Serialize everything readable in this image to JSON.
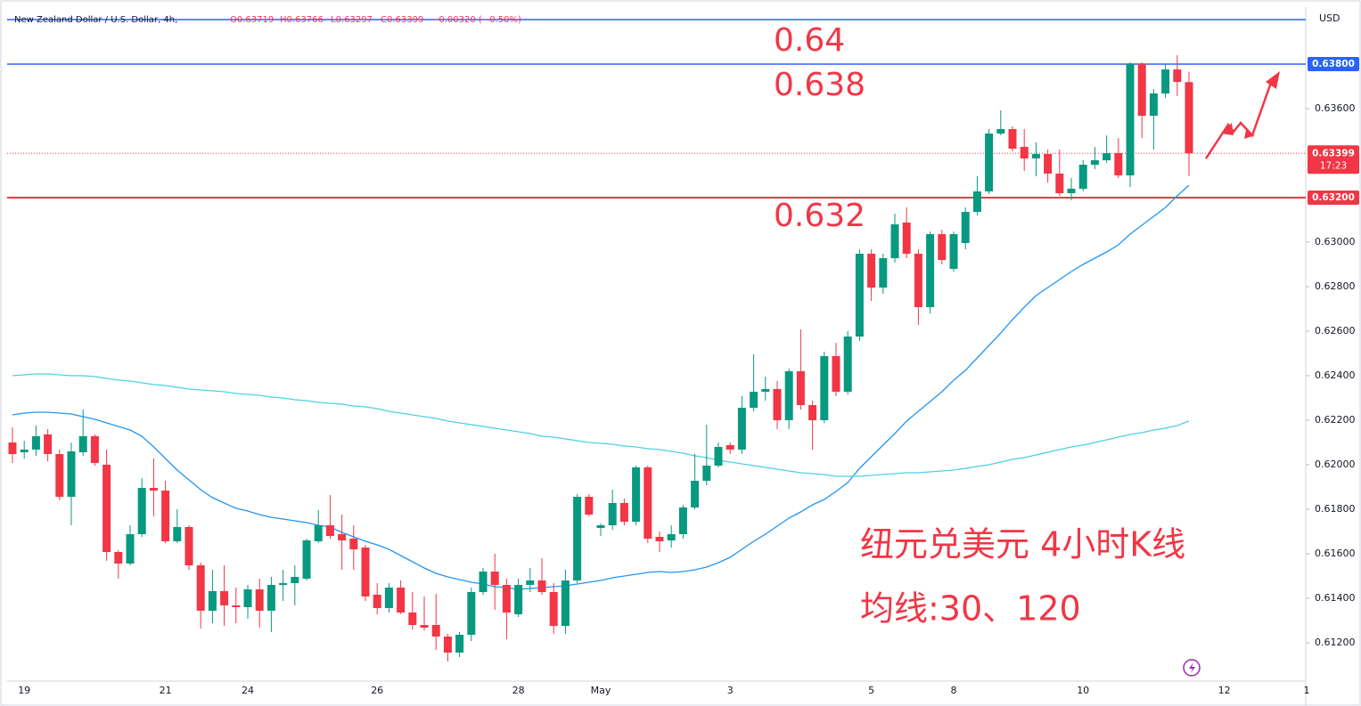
{
  "chart_data": {
    "type": "candlestick",
    "header": {
      "symbol": "New Zealand Dollar / U.S. Dollar, 4h,",
      "ohlc": [
        "O0.63719",
        "H0.63766",
        "L0.63297",
        "C0.63399"
      ],
      "change": "−0.00320 (−0.50%)"
    },
    "currency": "USD",
    "up_color": "#089981",
    "down_color": "#f23645",
    "categories": [
      null,
      "19",
      null,
      null,
      null,
      null,
      null,
      null,
      null,
      null,
      null,
      null,
      null,
      "21",
      null,
      null,
      null,
      null,
      null,
      null,
      "24",
      null,
      null,
      null,
      null,
      null,
      null,
      null,
      null,
      null,
      null,
      "26",
      null,
      null,
      null,
      null,
      null,
      null,
      null,
      null,
      null,
      null,
      null,
      "28",
      null,
      null,
      null,
      null,
      null,
      null,
      "May",
      null,
      null,
      null,
      null,
      null,
      null,
      null,
      null,
      null,
      null,
      "3",
      null,
      null,
      null,
      null,
      null,
      null,
      null,
      null,
      null,
      null,
      null,
      "5",
      null,
      null,
      null,
      null,
      null,
      null,
      "8",
      null,
      null,
      null,
      null,
      null,
      null,
      null,
      null,
      null,
      null,
      "10",
      null,
      null,
      null,
      null,
      null,
      null,
      null,
      null,
      null,
      null,
      null,
      "12",
      null,
      null,
      null,
      null,
      null,
      null,
      "1"
    ],
    "open": [
      0.621,
      0.62056,
      0.62068,
      0.62136,
      0.62048,
      0.61856,
      0.62056,
      0.62128,
      0.62,
      0.61608,
      0.61556,
      0.61688,
      0.61896,
      0.61884,
      0.61656,
      0.6172,
      0.61548,
      0.61344,
      0.61432,
      0.61368,
      0.6136,
      0.6144,
      0.61344,
      0.6146,
      0.61468,
      0.61488,
      0.61656,
      0.61728,
      0.61688,
      0.61668,
      0.61628,
      0.61416,
      0.61356,
      0.61448,
      0.61336,
      0.6128,
      0.6128,
      0.61228,
      0.61156,
      0.61236,
      0.61428,
      0.6152,
      0.6146,
      0.61328,
      0.6146,
      0.6148,
      0.61428,
      0.61276,
      0.6148,
      0.61856,
      0.61716,
      0.61728,
      0.61828,
      0.61744,
      0.61988,
      0.61676,
      0.6166,
      0.61688,
      0.61808,
      0.61928,
      0.61996,
      0.62088,
      0.62068,
      0.62256,
      0.62328,
      0.6234,
      0.622,
      0.6242,
      0.62268,
      0.622,
      0.62488,
      0.62328,
      0.62576,
      0.62948,
      0.62796,
      0.62928,
      0.63088,
      0.62948,
      0.62708,
      0.63036,
      0.6288,
      0.62996,
      0.63136,
      0.63228,
      0.63488,
      0.63508,
      0.63428,
      0.63376,
      0.63396,
      0.63308,
      0.6322,
      0.6324,
      0.63348,
      0.63368,
      0.634,
      0.633,
      0.638,
      0.63568,
      0.63668,
      0.63776,
      0.63719,
      null,
      null,
      null,
      null,
      null,
      null,
      null,
      null,
      null,
      null
    ],
    "high": [
      0.62168,
      0.62108,
      0.62176,
      0.6216,
      0.62068,
      0.621,
      0.62248,
      0.62136,
      0.62068,
      0.61616,
      0.61728,
      0.6194,
      0.62028,
      0.61928,
      0.618,
      0.61728,
      0.6156,
      0.61528,
      0.61548,
      0.61448,
      0.6146,
      0.61488,
      0.61496,
      0.61528,
      0.61548,
      0.61668,
      0.61796,
      0.61864,
      0.61776,
      0.61728,
      0.6164,
      0.61468,
      0.61468,
      0.6148,
      0.61428,
      0.61408,
      0.6142,
      0.6124,
      0.61248,
      0.61448,
      0.61536,
      0.616,
      0.61488,
      0.61488,
      0.61536,
      0.6158,
      0.61468,
      0.61528,
      0.61868,
      0.61868,
      0.61736,
      0.61888,
      0.61848,
      0.61996,
      0.61996,
      0.617,
      0.61728,
      0.6182,
      0.62048,
      0.6218,
      0.621,
      0.621,
      0.62308,
      0.62496,
      0.62396,
      0.62376,
      0.62432,
      0.62608,
      0.62288,
      0.62508,
      0.62548,
      0.626,
      0.62968,
      0.62968,
      0.62948,
      0.63128,
      0.63156,
      0.62968,
      0.63048,
      0.63056,
      0.63048,
      0.63156,
      0.63296,
      0.63508,
      0.63592,
      0.6352,
      0.63508,
      0.63448,
      0.63416,
      0.63416,
      0.63288,
      0.63368,
      0.63428,
      0.6348,
      0.63468,
      0.63808,
      0.63808,
      0.63688,
      0.638,
      0.6384,
      0.63766,
      null,
      null,
      null,
      null,
      null,
      null,
      null,
      null,
      null,
      null
    ],
    "low": [
      0.62008,
      0.62028,
      0.6204,
      0.62016,
      0.6184,
      0.61728,
      0.6204,
      0.61996,
      0.61568,
      0.61488,
      0.61548,
      0.61676,
      0.61768,
      0.61648,
      0.61648,
      0.61528,
      0.61264,
      0.61288,
      0.61276,
      0.61288,
      0.61308,
      0.61268,
      0.61248,
      0.61388,
      0.61368,
      0.6148,
      0.61648,
      0.61668,
      0.61528,
      0.61528,
      0.61388,
      0.61328,
      0.61336,
      0.61328,
      0.6126,
      0.61256,
      0.61168,
      0.61116,
      0.61136,
      0.61208,
      0.61416,
      0.61348,
      0.61216,
      0.61316,
      0.61428,
      0.61416,
      0.6124,
      0.6124,
      0.61468,
      0.61768,
      0.6168,
      0.61708,
      0.61728,
      0.61728,
      0.61648,
      0.61608,
      0.61628,
      0.61668,
      0.618,
      0.61908,
      0.61988,
      0.62048,
      0.62048,
      0.6224,
      0.62288,
      0.6216,
      0.6216,
      0.62248,
      0.62068,
      0.62188,
      0.62308,
      0.62316,
      0.62556,
      0.62736,
      0.62768,
      0.62908,
      0.62928,
      0.62628,
      0.6268,
      0.629,
      0.62868,
      0.62968,
      0.6312,
      0.63216,
      0.6348,
      0.63408,
      0.6332,
      0.63296,
      0.63268,
      0.63208,
      0.63188,
      0.63228,
      0.63328,
      0.63356,
      0.63288,
      0.63248,
      0.63468,
      0.63416,
      0.63648,
      0.63656,
      0.63297,
      null,
      null,
      null,
      null,
      null,
      null,
      null,
      null,
      null,
      null
    ],
    "close": [
      0.62048,
      0.62068,
      0.62128,
      0.62048,
      0.61856,
      0.6206,
      0.62128,
      0.62008,
      0.61608,
      0.61556,
      0.61688,
      0.61896,
      0.61884,
      0.61656,
      0.6172,
      0.61548,
      0.61344,
      0.61432,
      0.61368,
      0.6136,
      0.6144,
      0.61344,
      0.6146,
      0.61468,
      0.61496,
      0.6166,
      0.61728,
      0.6168,
      0.6166,
      0.6162,
      0.61408,
      0.61356,
      0.61448,
      0.61336,
      0.6128,
      0.61268,
      0.61228,
      0.61156,
      0.61236,
      0.61428,
      0.6152,
      0.6146,
      0.61336,
      0.6146,
      0.6148,
      0.61428,
      0.61276,
      0.6148,
      0.61856,
      0.61776,
      0.61728,
      0.61828,
      0.61744,
      0.61988,
      0.61668,
      0.61656,
      0.61688,
      0.61808,
      0.61928,
      0.61996,
      0.6208,
      0.62068,
      0.62256,
      0.62328,
      0.6234,
      0.622,
      0.6242,
      0.62268,
      0.622,
      0.62488,
      0.62328,
      0.62576,
      0.62948,
      0.62796,
      0.62928,
      0.6308,
      0.62948,
      0.62708,
      0.63036,
      0.6292,
      0.63036,
      0.63136,
      0.63228,
      0.63488,
      0.63508,
      0.6342,
      0.63376,
      0.63396,
      0.63308,
      0.6322,
      0.6324,
      0.63348,
      0.63368,
      0.634,
      0.633,
      0.638,
      0.63568,
      0.63668,
      0.63776,
      0.6372,
      0.63399,
      null,
      null,
      null,
      null,
      null,
      null,
      null,
      null,
      null,
      null
    ],
    "overlays": [
      {
        "color": "#2196f3",
        "values": [
          0.62224,
          0.62232,
          0.62236,
          0.62236,
          0.62232,
          0.62228,
          0.62216,
          0.62204,
          0.62188,
          0.62172,
          0.62156,
          0.62128,
          0.6208,
          0.62028,
          0.61976,
          0.61932,
          0.61888,
          0.61852,
          0.61828,
          0.61804,
          0.61792,
          0.61776,
          0.61764,
          0.61756,
          0.61748,
          0.6174,
          0.61728,
          0.6172,
          0.61696,
          0.61676,
          0.61656,
          0.6164,
          0.6162,
          0.61592,
          0.61564,
          0.61536,
          0.61512,
          0.61496,
          0.61484,
          0.61472,
          0.61464,
          0.61452,
          0.61448,
          0.6144,
          0.61444,
          0.61448,
          0.61452,
          0.61456,
          0.61464,
          0.61472,
          0.6148,
          0.61492,
          0.615,
          0.61508,
          0.61516,
          0.6152,
          0.61516,
          0.6152,
          0.61528,
          0.6154,
          0.6156,
          0.61584,
          0.6162,
          0.61656,
          0.61688,
          0.61724,
          0.6176,
          0.61788,
          0.6182,
          0.61844,
          0.6188,
          0.6192,
          0.61984,
          0.62036,
          0.62088,
          0.6214,
          0.62196,
          0.6224,
          0.62284,
          0.62328,
          0.6238,
          0.62424,
          0.6248,
          0.62536,
          0.62592,
          0.62652,
          0.62708,
          0.6276,
          0.62796,
          0.62832,
          0.62868,
          0.629,
          0.62928,
          0.62956,
          0.62988,
          0.63036,
          0.63076,
          0.63116,
          0.63156,
          0.63208,
          0.63256,
          null,
          null,
          null,
          null,
          null,
          null,
          null,
          null,
          null,
          null
        ]
      },
      {
        "color": "#4dd0e1",
        "values": [
          0.624,
          0.62404,
          0.62408,
          0.62408,
          0.62404,
          0.624,
          0.624,
          0.62396,
          0.62388,
          0.6238,
          0.62376,
          0.62368,
          0.6236,
          0.62356,
          0.62348,
          0.6234,
          0.62336,
          0.62332,
          0.62328,
          0.6232,
          0.62316,
          0.62312,
          0.62304,
          0.623,
          0.62292,
          0.62288,
          0.6228,
          0.62276,
          0.62272,
          0.62264,
          0.6226,
          0.62252,
          0.6224,
          0.62232,
          0.62224,
          0.62216,
          0.62208,
          0.62196,
          0.62188,
          0.6218,
          0.62172,
          0.62164,
          0.62156,
          0.62148,
          0.6214,
          0.62128,
          0.62124,
          0.62116,
          0.62108,
          0.621,
          0.62096,
          0.62092,
          0.62084,
          0.6208,
          0.62072,
          0.62068,
          0.6206,
          0.62052,
          0.6204,
          0.62032,
          0.6202,
          0.62012,
          0.62004,
          0.61996,
          0.61988,
          0.6198,
          0.61972,
          0.61964,
          0.6196,
          0.61956,
          0.61948,
          0.61948,
          0.61948,
          0.61952,
          0.61956,
          0.6196,
          0.61964,
          0.61964,
          0.61968,
          0.61972,
          0.61976,
          0.61984,
          0.61992,
          0.62,
          0.62012,
          0.62024,
          0.62032,
          0.62044,
          0.62056,
          0.62068,
          0.6208,
          0.62088,
          0.621,
          0.62112,
          0.62124,
          0.62136,
          0.62144,
          0.62156,
          0.62164,
          0.62176,
          0.62196,
          null,
          null,
          null,
          null,
          null,
          null,
          null,
          null,
          null,
          null
        ]
      }
    ],
    "ylim": [
      0.61028,
      0.64056
    ],
    "yticks": [
      {
        "value": 0.612,
        "label": "0.61200"
      },
      {
        "value": 0.614,
        "label": "0.61400"
      },
      {
        "value": 0.616,
        "label": "0.61600"
      },
      {
        "value": 0.618,
        "label": "0.61800"
      },
      {
        "value": 0.62,
        "label": "0.62000"
      },
      {
        "value": 0.622,
        "label": "0.62200"
      },
      {
        "value": 0.624,
        "label": "0.62400"
      },
      {
        "value": 0.626,
        "label": "0.62600"
      },
      {
        "value": 0.628,
        "label": "0.62800"
      },
      {
        "value": 0.63,
        "label": "0.63000"
      },
      {
        "value": 0.636,
        "label": "0.63600"
      }
    ],
    "hlines": [
      {
        "value": 0.64,
        "color": "#2962ff"
      },
      {
        "value": 0.638,
        "color": "#2962ff",
        "label": "0.63800"
      },
      {
        "value": 0.632,
        "color": "#f23645",
        "label": "0.63200"
      }
    ],
    "price_line": {
      "value": 0.63399,
      "label": "0.63399",
      "countdown": "17:23",
      "color": "#f23645"
    },
    "annotations": [
      "纽元兑美元 4小时K线",
      "均线:30、120"
    ]
  }
}
